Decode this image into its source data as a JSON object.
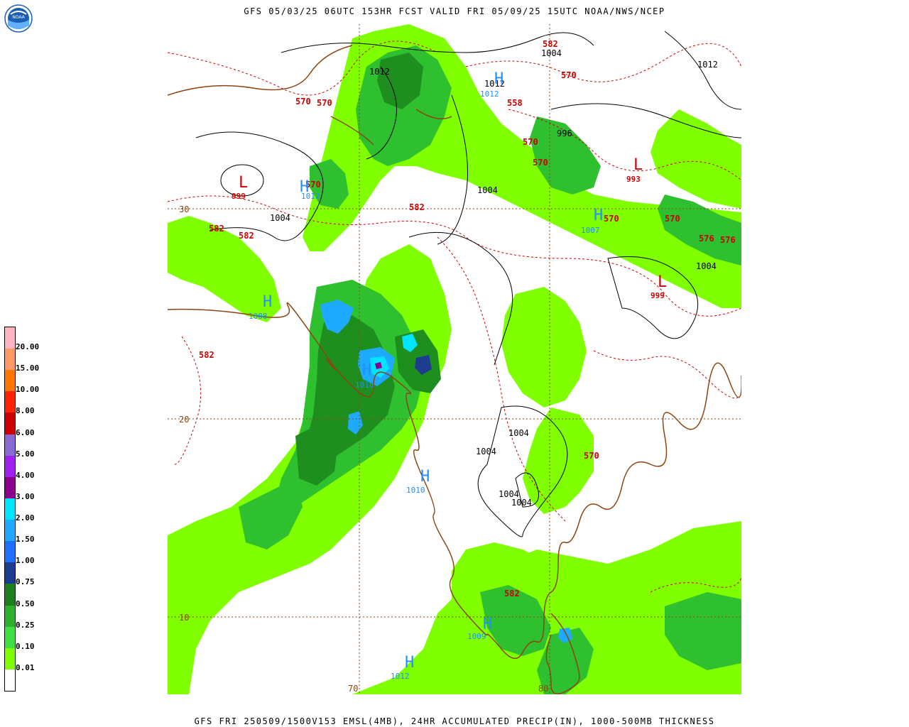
{
  "header": {
    "title": "GFS 05/03/25 06UTC 153HR FCST VALID FRI 05/09/25 15UTC NOAA/NWS/NCEP",
    "logo_text": "NOAA"
  },
  "footer": {
    "title": "GFS FRI 250509/1500V153 EMSL(4MB), 24HR ACCUMULATED PRECIP(IN), 1000-500MB THICKNESS"
  },
  "colors": {
    "precip_light": "#7fff00",
    "precip_mid": "#2fd02f",
    "precip_dark": "#1e8f1e",
    "precip_blue": "#1e90ff",
    "precip_cyan": "#00e5ff",
    "thickness": "#cc0000",
    "pressure": "#000000",
    "high_low_blue": "#1e90ff",
    "coast": "#8b4513"
  },
  "legend": [
    {
      "label": "20.00",
      "color": "#ffb6c1"
    },
    {
      "label": "15.00",
      "color": "#ff9966"
    },
    {
      "label": "10.00",
      "color": "#ff7700"
    },
    {
      "label": "8.00",
      "color": "#ff2200"
    },
    {
      "label": "6.00",
      "color": "#cc0000"
    },
    {
      "label": "5.00",
      "color": "#8a6bd6"
    },
    {
      "label": "4.00",
      "color": "#a020f0"
    },
    {
      "label": "3.00",
      "color": "#8b008b"
    },
    {
      "label": "2.00",
      "color": "#00e5ff"
    },
    {
      "label": "1.50",
      "color": "#1eaaff"
    },
    {
      "label": "1.00",
      "color": "#1e6fff"
    },
    {
      "label": "0.75",
      "color": "#1e3c8f"
    },
    {
      "label": "0.50",
      "color": "#1e7f1e"
    },
    {
      "label": "0.25",
      "color": "#2fb02f"
    },
    {
      "label": "0.10",
      "color": "#3fe03f"
    },
    {
      "label": "0.01",
      "color": "#7fff00"
    },
    {
      "label": "",
      "color": "#ffffff"
    }
  ],
  "grid_labels": {
    "lat_30": "30",
    "lat_20": "20",
    "lat_10": "10",
    "lon_70": "70",
    "lon_80": "80"
  },
  "thickness_labels": [
    "582",
    "582",
    "582",
    "582",
    "570",
    "570",
    "570",
    "570",
    "570",
    "570",
    "570",
    "570",
    "558",
    "582",
    "582",
    "570",
    "576",
    "576"
  ],
  "pressure_labels": [
    "1004",
    "1012",
    "1012",
    "1012",
    "996",
    "1004",
    "1004",
    "1004",
    "1004",
    "1004",
    "1004",
    "1004"
  ],
  "centers": [
    {
      "type": "L",
      "value": "999"
    },
    {
      "type": "L",
      "value": "993"
    },
    {
      "type": "L",
      "value": "999"
    },
    {
      "type": "H",
      "value": "1012"
    },
    {
      "type": "H",
      "value": "1007"
    },
    {
      "type": "H",
      "value": "1008"
    },
    {
      "type": "H",
      "value": "1012"
    },
    {
      "type": "H",
      "value": "1010"
    },
    {
      "type": "H",
      "value": "1012"
    },
    {
      "type": "H",
      "value": "1010"
    },
    {
      "type": "H",
      "value": "1009"
    }
  ]
}
